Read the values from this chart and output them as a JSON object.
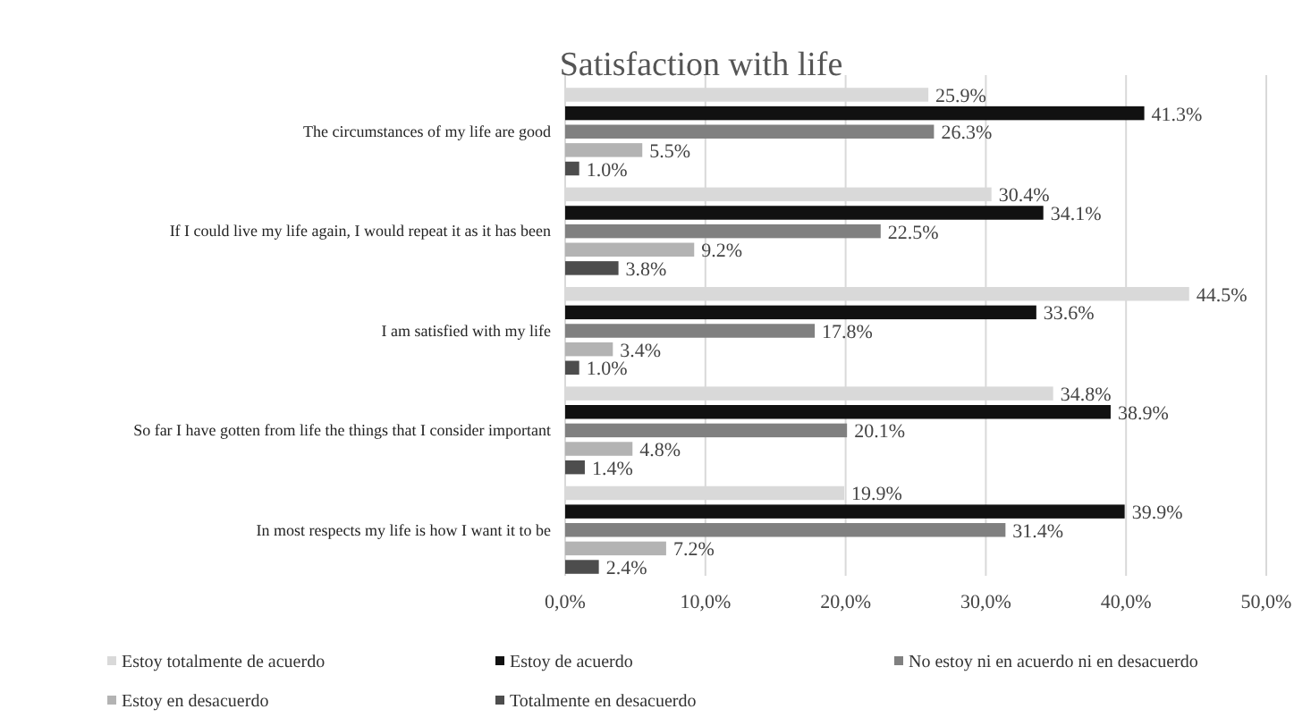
{
  "chart_data": {
    "type": "bar",
    "orientation": "horizontal",
    "title": "Satisfaction with life",
    "categories": [
      "The circumstances of my life are good",
      "If I could live my life again, I would repeat it as it has been",
      "I am satisfied with my life",
      "So far I have gotten from life the things that I consider important",
      "In most respects my life is how I want it to be"
    ],
    "series": [
      {
        "name": "Estoy totalmente de acuerdo",
        "color": "#d9d9d9",
        "values": [
          25.9,
          30.4,
          44.5,
          34.8,
          19.9
        ],
        "value_labels": [
          "25.9%",
          "30.4%",
          "44.5%",
          "34.8%",
          "19.9%"
        ]
      },
      {
        "name": "Estoy de acuerdo",
        "color": "#111111",
        "values": [
          41.3,
          34.1,
          33.6,
          38.9,
          39.9
        ],
        "value_labels": [
          "41.3%",
          "34.1%",
          "33.6%",
          "38.9%",
          "39.9%"
        ]
      },
      {
        "name": "No estoy ni en acuerdo ni en desacuerdo",
        "color": "#808080",
        "values": [
          26.3,
          22.5,
          17.8,
          20.1,
          31.4
        ],
        "value_labels": [
          "26.3%",
          "22.5%",
          "17.8%",
          "20.1%",
          "31.4%"
        ]
      },
      {
        "name": "Estoy en desacuerdo",
        "color": "#b3b3b3",
        "values": [
          5.5,
          9.2,
          3.4,
          4.8,
          7.2
        ],
        "value_labels": [
          "5.5%",
          "9.2%",
          "3.4%",
          "4.8%",
          "7.2%"
        ]
      },
      {
        "name": "Totalmente en desacuerdo",
        "color": "#4d4d4d",
        "values": [
          1.0,
          3.8,
          1.0,
          1.4,
          2.4
        ],
        "value_labels": [
          "1.0%",
          "3.8%",
          "1.0%",
          "1.4%",
          "2.4%"
        ]
      }
    ],
    "xlim": [
      0,
      50
    ],
    "xticks": [
      {
        "value": 0,
        "label": "0,0%"
      },
      {
        "value": 10,
        "label": "10,0%"
      },
      {
        "value": 20,
        "label": "20,0%"
      },
      {
        "value": 30,
        "label": "30,0%"
      },
      {
        "value": 40,
        "label": "40,0%"
      },
      {
        "value": 50,
        "label": "50,0%"
      }
    ],
    "grid": "x",
    "legend": "bottom"
  }
}
